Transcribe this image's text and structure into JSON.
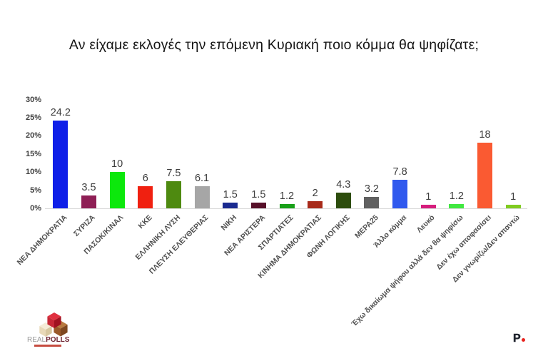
{
  "title": "Αν είχαμε εκλογές την επόμενη Κυριακή ποιο κόμμα θα ψηφίζατε;",
  "chart_data": {
    "type": "bar",
    "title": "Αν είχαμε εκλογές την επόμενη Κυριακή ποιο κόμμα θα ψηφίζατε;",
    "categories": [
      "ΝΕΑ ΔΗΜΟΚΡΑΤΙΑ",
      "ΣΥΡΙΖΑ",
      "ΠΑΣΟΚ/ΚΙΝΑΛ",
      "ΚΚΕ",
      "ΕΛΛΗΝΙΚΗ ΛΥΣΗ",
      "ΠΛΕΥΣΗ ΕΛΕΥΘΕΡΙΑΣ",
      "ΝΙΚΗ",
      "ΝΕΑ ΑΡΙΣΤΕΡΑ",
      "ΣΠΑΡΤΙΑΤΕΣ",
      "ΚΙΝΗΜΑ ΔΗΜΟΚΡΑΤΙΑΣ",
      "ΦΩΝΗ ΛΟΓΙΚΗΣ",
      "ΜΕΡΑ25",
      "Άλλο κόμμα",
      "Λευκό",
      "Έχω δικαίωμα ψήφου αλλά δεν θα ψηφίσω",
      "Δεν έχω αποφασίσει",
      "Δεν γνωρίζω/Δεν απαντώ"
    ],
    "values": [
      24.2,
      3.5,
      10,
      6,
      7.5,
      6.1,
      1.5,
      1.5,
      1.2,
      2,
      4.3,
      3.2,
      7.8,
      1,
      1.2,
      18,
      1
    ],
    "value_labels": [
      "24.2",
      "3.5",
      "10",
      "6",
      "7.5",
      "6.1",
      "1.5",
      "1.5",
      "1.2",
      "2",
      "4.3",
      "3.2",
      "7.8",
      "1",
      "1.2",
      "18",
      "1"
    ],
    "colors": [
      "#0f1fe8",
      "#8e1f55",
      "#0ce80c",
      "#f02010",
      "#4e8a10",
      "#a6a6a6",
      "#1a2a90",
      "#571029",
      "#18a018",
      "#a82a1a",
      "#2d4d0d",
      "#606060",
      "#3059ee",
      "#d61d7d",
      "#40e840",
      "#fa5a32",
      "#80cc20"
    ],
    "xlabel": "",
    "ylabel": "",
    "ylim": [
      0,
      30
    ],
    "ytick_labels": [
      "30%",
      "25%",
      "20%",
      "15%",
      "10%",
      "5%",
      "0%"
    ],
    "grid": false,
    "legend": false
  },
  "footer": {
    "logo_real": "REAL",
    "logo_polls": "POLLS",
    "p_logo": "P"
  }
}
